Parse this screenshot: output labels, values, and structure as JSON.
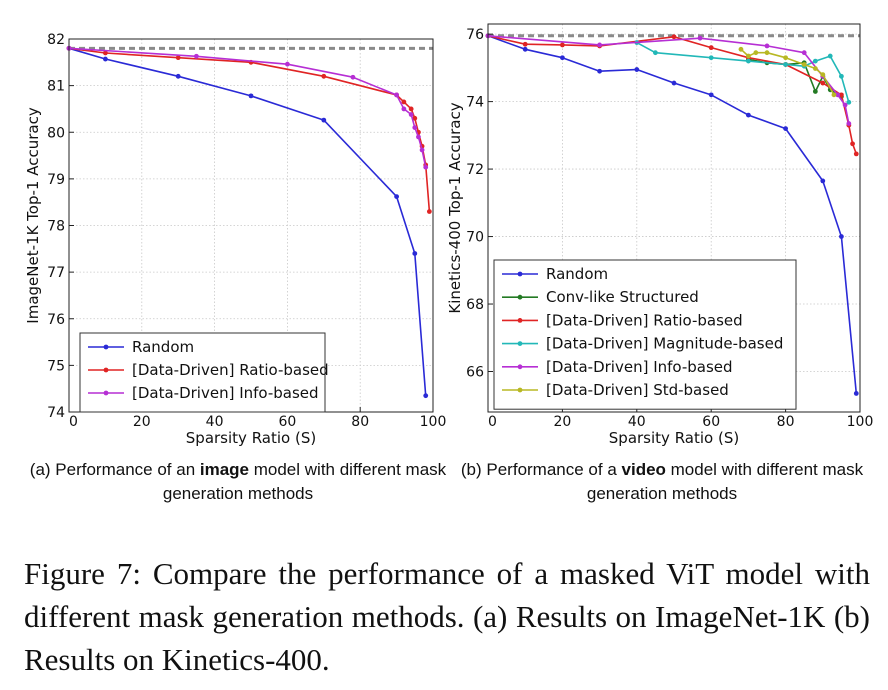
{
  "chart_data": [
    {
      "type": "line",
      "id": "a",
      "title": "",
      "xlabel": "Sparsity Ratio (S)",
      "ylabel": "ImageNet-1K Top-1 Accuracy",
      "xlim": [
        0,
        100
      ],
      "ylim": [
        74,
        82
      ],
      "xticks": [
        0,
        20,
        40,
        60,
        80,
        100
      ],
      "xtick_labels": [
        "0",
        "20",
        "40",
        "60",
        "80",
        "100"
      ],
      "yticks": [
        74,
        75,
        76,
        77,
        78,
        79,
        80,
        81,
        82
      ],
      "ytick_labels": [
        "74",
        "75",
        "76",
        "77",
        "78",
        "79",
        "80",
        "81",
        "82"
      ],
      "reference_line": 81.8,
      "grid": true,
      "legend_position": "bottom-left",
      "series": [
        {
          "name": "Random",
          "color": "#2a2ad6",
          "x": [
            0,
            10,
            30,
            50,
            70,
            90,
            95,
            98
          ],
          "y": [
            81.8,
            81.57,
            81.2,
            80.78,
            80.26,
            78.62,
            77.4,
            74.35
          ]
        },
        {
          "name": "[Data-Driven] Ratio-based",
          "color": "#e02424",
          "x": [
            0,
            10,
            30,
            50,
            70,
            90,
            92,
            94,
            95,
            96,
            97,
            98,
            99
          ],
          "y": [
            81.8,
            81.7,
            81.6,
            81.5,
            81.2,
            80.8,
            80.65,
            80.5,
            80.3,
            80.0,
            79.7,
            79.3,
            78.3
          ]
        },
        {
          "name": "[Data-Driven] Info-based",
          "color": "#b62fd4",
          "x": [
            0,
            35,
            60,
            78,
            90,
            92,
            94,
            95,
            96,
            97,
            98
          ],
          "y": [
            81.8,
            81.63,
            81.46,
            81.18,
            80.8,
            80.5,
            80.38,
            80.1,
            79.9,
            79.62,
            79.25
          ]
        }
      ]
    },
    {
      "type": "line",
      "id": "b",
      "title": "",
      "xlabel": "Sparsity Ratio (S)",
      "ylabel": "Kinetics-400 Top-1 Accuracy",
      "xlim": [
        0,
        100
      ],
      "ylim": [
        64.8,
        76.3
      ],
      "xticks": [
        0,
        20,
        40,
        60,
        80,
        100
      ],
      "xtick_labels": [
        "0",
        "20",
        "40",
        "60",
        "80",
        "100"
      ],
      "yticks": [
        66,
        68,
        70,
        72,
        74,
        76
      ],
      "ytick_labels": [
        "66",
        "68",
        "70",
        "72",
        "74",
        "76"
      ],
      "reference_line": 75.95,
      "grid": true,
      "legend_position": "bottom-left",
      "series": [
        {
          "name": "Random",
          "color": "#2a2ad6",
          "x": [
            0,
            10,
            20,
            30,
            40,
            50,
            60,
            70,
            80,
            90,
            95,
            99
          ],
          "y": [
            75.95,
            75.55,
            75.3,
            74.9,
            74.95,
            74.55,
            74.2,
            73.6,
            73.2,
            71.65,
            70.0,
            65.35
          ]
        },
        {
          "name": "Conv-like Structured",
          "color": "#237a23",
          "x": [
            70,
            75,
            80,
            85,
            88,
            90,
            92,
            95
          ],
          "y": [
            75.25,
            75.15,
            75.1,
            75.15,
            74.3,
            74.75,
            74.35,
            74.15
          ]
        },
        {
          "name": "[Data-Driven] Ratio-based",
          "color": "#e02424",
          "x": [
            0,
            10,
            20,
            30,
            50,
            60,
            70,
            80,
            90,
            95,
            97,
            98,
            99
          ],
          "y": [
            75.95,
            75.7,
            75.68,
            75.65,
            75.92,
            75.6,
            75.3,
            75.1,
            74.55,
            74.2,
            73.3,
            72.75,
            72.45
          ]
        },
        {
          "name": "[Data-Driven] Magnitude-based",
          "color": "#22b8b8",
          "x": [
            40,
            45,
            60,
            70,
            80,
            85,
            88,
            92,
            95,
            97
          ],
          "y": [
            75.75,
            75.45,
            75.3,
            75.2,
            75.1,
            75.05,
            75.2,
            75.35,
            74.75,
            73.98
          ]
        },
        {
          "name": "[Data-Driven] Info-based",
          "color": "#b62fd4",
          "x": [
            0,
            30,
            57,
            75,
            85,
            90,
            94,
            96,
            97
          ],
          "y": [
            75.95,
            75.68,
            75.88,
            75.65,
            75.45,
            74.75,
            74.2,
            73.9,
            73.35
          ]
        },
        {
          "name": "[Data-Driven] Std-based",
          "color": "#b8b824",
          "x": [
            68,
            70,
            72,
            75,
            80,
            85,
            88,
            90,
            93
          ],
          "y": [
            75.55,
            75.35,
            75.45,
            75.45,
            75.3,
            75.1,
            74.98,
            74.8,
            74.2
          ]
        }
      ]
    }
  ],
  "captions": {
    "sub_a_prefix": "(a) Performance of an ",
    "sub_a_bold": "image",
    "sub_a_suffix": " model with different mask generation methods",
    "sub_b_prefix": "(b) Performance of a ",
    "sub_b_bold": "video",
    "sub_b_suffix": " model with different mask generation methods",
    "figure": "Figure 7: Compare the performance of a masked ViT model with different mask generation methods. (a) Results on ImageNet-1K (b) Results on Kinetics-400."
  }
}
